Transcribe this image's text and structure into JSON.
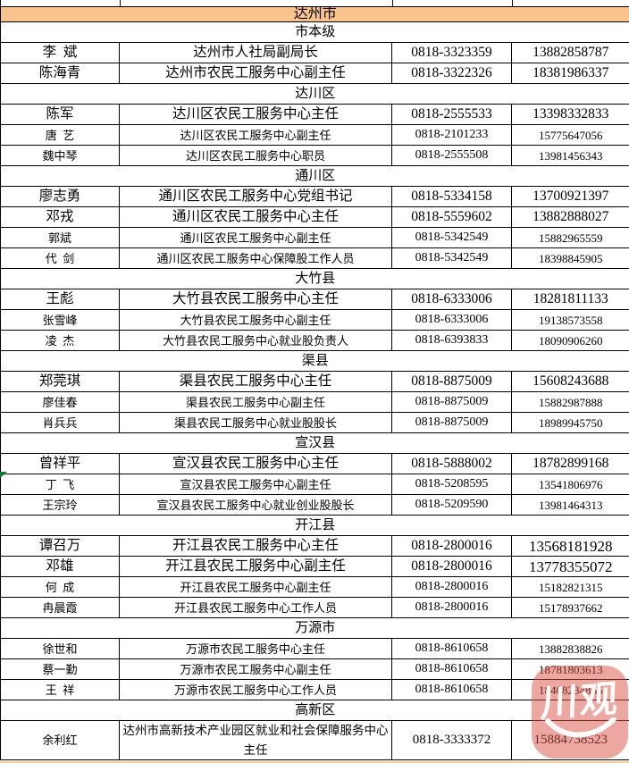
{
  "table": {
    "city_header": "达州市",
    "sections": [
      {
        "label": "市本级",
        "rows": [
          {
            "name": "李  斌",
            "title": "达州市人社局副局长",
            "phone": "0818-3323359",
            "mobile": "13882858787",
            "size": "lg"
          },
          {
            "name": "陈海青",
            "title": "达州市农民工服务中心副主任",
            "phone": "0818-3322326",
            "mobile": "18381986337",
            "size": "lg"
          }
        ]
      },
      {
        "label": "达川区",
        "rows": [
          {
            "name": "陈军",
            "title": "达川区农民工服务中心主任",
            "phone": "0818-2555533",
            "mobile": "13398332833",
            "size": "lg"
          },
          {
            "name": "唐  艺",
            "title": "达川区农民工服务中心副主任",
            "phone": "0818-2101233",
            "mobile": "15775647056",
            "size": "sm"
          },
          {
            "name": "魏中琴",
            "title": "达川区农民工服务中心职员",
            "phone": "0818-2555508",
            "mobile": "13981456343",
            "size": "sm"
          }
        ]
      },
      {
        "label": "通川区",
        "rows": [
          {
            "name": "廖志勇",
            "title": "通川区农民工服务中心党组书记",
            "phone": "0818-5334158",
            "mobile": "13700921397",
            "size": "lg"
          },
          {
            "name": "邓戎",
            "title": "通川区农民工服务中心主任",
            "phone": "0818-5559602",
            "mobile": "13882888027",
            "size": "lg"
          },
          {
            "name": "郭斌",
            "title": "通川区农民工服务中心副主任",
            "phone": "0818-5342549",
            "mobile": "15882965559",
            "size": "sm"
          },
          {
            "name": "代  剑",
            "title": "通川区农民工服务中心保障股工作人员",
            "phone": "0818-5342549",
            "mobile": "18398845905",
            "size": "sm"
          }
        ]
      },
      {
        "label": "大竹县",
        "rows": [
          {
            "name": "王彪",
            "title": "大竹县农民工服务中心主任",
            "phone": "0818-6333006",
            "mobile": "18281811133",
            "size": "lg"
          },
          {
            "name": "张雪峰",
            "title": "大竹县农民工服务中心副主任",
            "phone": "0818-6333006",
            "mobile": "19138573558",
            "size": "sm"
          },
          {
            "name": "凌  杰",
            "title": "大竹县农民工服务中心就业股负责人",
            "phone": "0818-6393833",
            "mobile": "18090906260",
            "size": "sm"
          }
        ]
      },
      {
        "label": "渠县",
        "rows": [
          {
            "name": "郑莞琪",
            "title": "渠县农民工服务中心主任",
            "phone": "0818-8875009",
            "mobile": "15608243688",
            "size": "lg"
          },
          {
            "name": "廖佳春",
            "title": "渠县农民工服务中心副主任",
            "phone": "0818-8875009",
            "mobile": "15882987888",
            "size": "sm"
          },
          {
            "name": "肖兵兵",
            "title": "渠县农民工服务中心就业股股长",
            "phone": "0818-8875009",
            "mobile": "18989945750",
            "size": "sm"
          }
        ]
      },
      {
        "label": "宣汉县",
        "rows": [
          {
            "name": "曾祥平",
            "title": "宣汉县农民工服务中心主任",
            "phone": "0818-5888002",
            "mobile": "18782899168",
            "size": "lg"
          },
          {
            "name": "丁  飞",
            "title": "宣汉县农民工服务中心副主任",
            "phone": "0818-5208595",
            "mobile": "13541806976",
            "size": "sm"
          },
          {
            "name": "王宗玲",
            "title": "宣汉县农民工服务中心就业创业股股长",
            "phone": "0818-5209590",
            "mobile": "13981464313",
            "size": "sm"
          }
        ]
      },
      {
        "label": "开江县",
        "rows": [
          {
            "name": "谭召万",
            "title": "开江县农民工服务中心主任",
            "phone": "0818-2800016",
            "mobile": "13568181928",
            "size": "lg",
            "mobile_size": "xl"
          },
          {
            "name": "邓雄",
            "title": "开江县农民工服务中心副主任",
            "phone": "0818-2800016",
            "mobile": "13778355072",
            "size": "lg",
            "mobile_size": "xl"
          },
          {
            "name": "何  成",
            "title": "开江县农民工服务中心副主任",
            "phone": "0818-2800016",
            "mobile": "15182821315",
            "size": "sm"
          },
          {
            "name": "冉晨霞",
            "title": "开江县农民工服务中心工作人员",
            "phone": "0818-2800016",
            "mobile": "15178937662",
            "size": "sm"
          }
        ]
      },
      {
        "label": "万源市",
        "rows": [
          {
            "name": "徐世和",
            "title": "万源市农民工服务中心主任",
            "phone": "0818-8610658",
            "mobile": "13882838826",
            "size": "sm"
          },
          {
            "name": "蔡一勤",
            "title": "万源市农民工服务中心副主任",
            "phone": "0818-8610658",
            "mobile": "18781803613",
            "size": "sm"
          },
          {
            "name": "王  祥",
            "title": "万源市农民工服务中心工作人员",
            "phone": "0818-8610658",
            "mobile": "18408234866",
            "size": "sm"
          }
        ]
      },
      {
        "label": "高新区",
        "rows": [
          {
            "name": "余利红",
            "title": "达州市高新技术产业园区就业和社会保障服务中心主任",
            "phone": "0818-3333372",
            "mobile": "15884738523",
            "size": "sm",
            "tall": true,
            "phone_size": "md",
            "mobile_size": "md"
          }
        ]
      }
    ]
  },
  "watermark": {
    "text": "川观",
    "badge_color": "#D94F43",
    "text_color": "#FFFFFF"
  },
  "marker": {
    "color": "#0E7A33"
  },
  "colors": {
    "city_header_bg": "#F9C38D",
    "border": "#000000",
    "bottom_line": "#F8CE9C",
    "background": "#FFFFFF"
  }
}
